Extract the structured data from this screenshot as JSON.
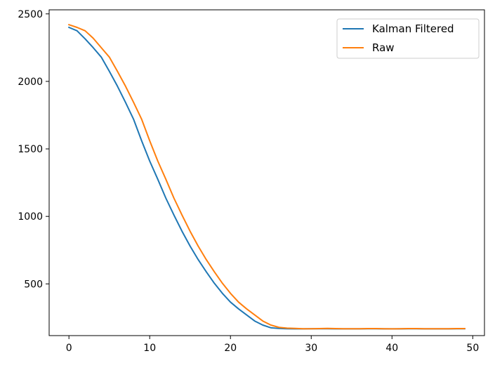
{
  "chart_data": {
    "type": "line",
    "title": "",
    "xlabel": "",
    "ylabel": "",
    "xlim": [
      -2.45,
      51.45
    ],
    "ylim": [
      117,
      2530
    ],
    "xticks": [
      0,
      10,
      20,
      30,
      40,
      50
    ],
    "yticks": [
      500,
      1000,
      1500,
      2000,
      2500
    ],
    "grid": false,
    "legend_position": "top-right",
    "x": [
      0,
      1,
      2,
      3,
      4,
      5,
      6,
      7,
      8,
      9,
      10,
      11,
      12,
      13,
      14,
      15,
      16,
      17,
      18,
      19,
      20,
      21,
      22,
      23,
      24,
      25,
      26,
      27,
      28,
      29,
      30,
      31,
      32,
      33,
      34,
      35,
      36,
      37,
      38,
      39,
      40,
      41,
      42,
      43,
      44,
      45,
      46,
      47,
      48,
      49
    ],
    "series": [
      {
        "name": "Kalman Filtered",
        "color": "#1f77b4",
        "values": [
          2400,
          2375,
          2315,
          2250,
          2180,
          2075,
          1965,
          1845,
          1720,
          1560,
          1410,
          1275,
          1135,
          1010,
          890,
          780,
          680,
          590,
          505,
          430,
          365,
          315,
          270,
          225,
          195,
          175,
          170,
          168,
          167,
          167,
          168,
          168,
          168,
          167,
          167,
          167,
          167,
          168,
          168,
          167,
          167,
          167,
          168,
          168,
          167,
          167,
          167,
          167,
          168,
          168
        ]
      },
      {
        "name": "Raw",
        "color": "#ff7f0e",
        "values": [
          2420,
          2400,
          2375,
          2320,
          2250,
          2180,
          2075,
          1965,
          1845,
          1720,
          1560,
          1410,
          1275,
          1135,
          1010,
          890,
          780,
          680,
          590,
          505,
          430,
          365,
          315,
          270,
          225,
          195,
          178,
          172,
          170,
          168,
          168,
          169,
          170,
          169,
          168,
          168,
          168,
          169,
          169,
          168,
          167,
          168,
          169,
          169,
          168,
          168,
          168,
          168,
          169,
          169
        ]
      }
    ]
  }
}
